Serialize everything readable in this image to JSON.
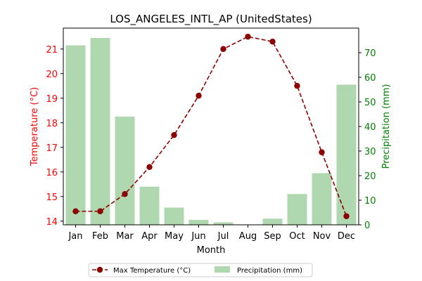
{
  "chart_data": {
    "type": "bar",
    "title": "LOS_ANGELES_INTL_AP (UnitedStates)",
    "xlabel": "Month",
    "ylabel_left": "Temperature (°C)",
    "ylabel_right": "Precipitation (mm)",
    "categories": [
      "Jan",
      "Feb",
      "Mar",
      "Apr",
      "May",
      "Jun",
      "Jul",
      "Aug",
      "Sep",
      "Oct",
      "Nov",
      "Dec"
    ],
    "ylim_left": [
      13.85,
      21.85
    ],
    "ylim_right": [
      0,
      80
    ],
    "left_ticks": [
      14,
      15,
      16,
      17,
      18,
      19,
      20,
      21
    ],
    "right_ticks": [
      0,
      10,
      20,
      30,
      40,
      50,
      60,
      70
    ],
    "series": [
      {
        "name": "Max Temperature (°C)",
        "kind": "line",
        "axis": "left",
        "color": "#8b0000",
        "values": [
          14.4,
          14.4,
          15.1,
          16.2,
          17.5,
          19.1,
          21.0,
          21.5,
          21.3,
          19.5,
          16.8,
          14.2
        ]
      },
      {
        "name": "Precipitation (mm)",
        "kind": "bar",
        "axis": "right",
        "color": "#b0d8b0",
        "values": [
          73,
          76,
          44,
          15.5,
          7,
          2,
          1,
          0,
          2.5,
          12.5,
          21,
          57
        ]
      }
    ],
    "legend_position": "bottom-center",
    "left_axis_color": "#ff0000",
    "right_axis_color": "#008000"
  }
}
